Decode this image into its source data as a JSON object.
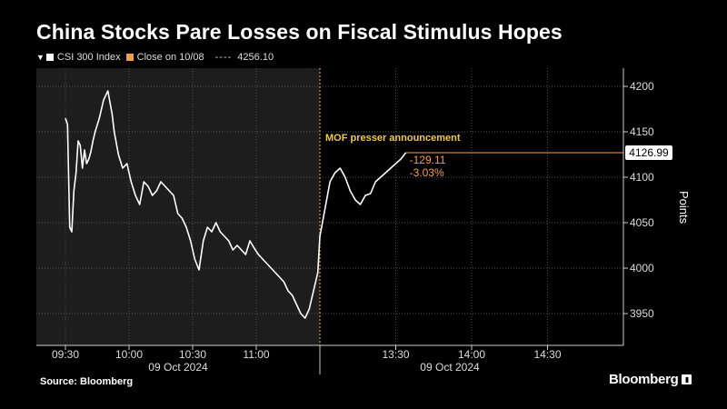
{
  "title": "China Stocks Pare Losses on Fiscal Stimulus Hopes",
  "legend": {
    "series_label": "CSI 300 Index",
    "close_label": "Close on 10/08",
    "close_value": "4256.10",
    "series_color": "#ffffff",
    "close_color": "#f59e4a"
  },
  "source": "Source: Bloomberg",
  "brand": "Bloomberg",
  "chart_data": {
    "type": "line",
    "title": "China Stocks Pare Losses on Fiscal Stimulus Hopes",
    "ylabel": "Points",
    "ylim": [
      3915,
      4220
    ],
    "yticks": [
      3950,
      4000,
      4050,
      4100,
      4150,
      4200
    ],
    "grid": true,
    "x_axis": {
      "tick_labels": [
        "09:30",
        "10:00",
        "10:30",
        "11:00",
        "13:30",
        "14:00",
        "14:30"
      ],
      "date_labels": [
        "09 Oct 2024",
        "09 Oct 2024"
      ]
    },
    "session_break_label": "MOF presser announcement",
    "last_value_label": "4126.99",
    "change_label": "-129.11",
    "change_pct_label": "-3.03%",
    "series": [
      {
        "name": "CSI 300 Index",
        "color": "#ffffff",
        "x": [
          "09:30",
          "09:31",
          "09:32",
          "09:33",
          "09:34",
          "09:35",
          "09:36",
          "09:37",
          "09:38",
          "09:39",
          "09:40",
          "09:41",
          "09:42",
          "09:43",
          "09:44",
          "09:46",
          "09:48",
          "09:50",
          "09:52",
          "09:53",
          "09:55",
          "09:57",
          "09:59",
          "10:01",
          "10:03",
          "10:05",
          "10:07",
          "10:09",
          "10:11",
          "10:13",
          "10:15",
          "10:17",
          "10:19",
          "10:21",
          "10:23",
          "10:25",
          "10:27",
          "10:29",
          "10:31",
          "10:33",
          "10:35",
          "10:37",
          "10:39",
          "10:41",
          "10:43",
          "10:45",
          "10:47",
          "10:49",
          "10:51",
          "10:53",
          "10:55",
          "10:57",
          "10:59",
          "11:01",
          "11:03",
          "11:05",
          "11:07",
          "11:09",
          "11:11",
          "11:13",
          "11:15",
          "11:17",
          "11:19",
          "11:21",
          "11:23",
          "11:25",
          "11:27",
          "11:29",
          "13:00",
          "13:02",
          "13:04",
          "13:06",
          "13:08",
          "13:10",
          "13:12",
          "13:14",
          "13:16",
          "13:18",
          "13:20",
          "13:22",
          "13:24",
          "13:26",
          "13:28",
          "13:30",
          "13:32",
          "13:34"
        ],
        "values": [
          4165,
          4158,
          4045,
          4040,
          4085,
          4105,
          4140,
          4135,
          4110,
          4130,
          4115,
          4120,
          4128,
          4140,
          4150,
          4165,
          4185,
          4195,
          4170,
          4150,
          4125,
          4110,
          4115,
          4095,
          4080,
          4070,
          4095,
          4090,
          4080,
          4085,
          4095,
          4090,
          4085,
          4080,
          4060,
          4055,
          4045,
          4030,
          4010,
          3998,
          4030,
          4045,
          4040,
          4050,
          4040,
          4035,
          4030,
          4020,
          4025,
          4020,
          4015,
          4030,
          4022,
          4015,
          4010,
          4005,
          4000,
          3995,
          3990,
          3985,
          3975,
          3970,
          3960,
          3950,
          3945,
          3955,
          3975,
          3995,
          4035,
          4065,
          4095,
          4105,
          4110,
          4100,
          4085,
          4075,
          4070,
          4080,
          4082,
          4095,
          4100,
          4105,
          4110,
          4115,
          4120,
          4126.99
        ]
      },
      {
        "name": "Close on 10/08",
        "color": "#f59e4a",
        "value": 4256.1
      }
    ]
  }
}
